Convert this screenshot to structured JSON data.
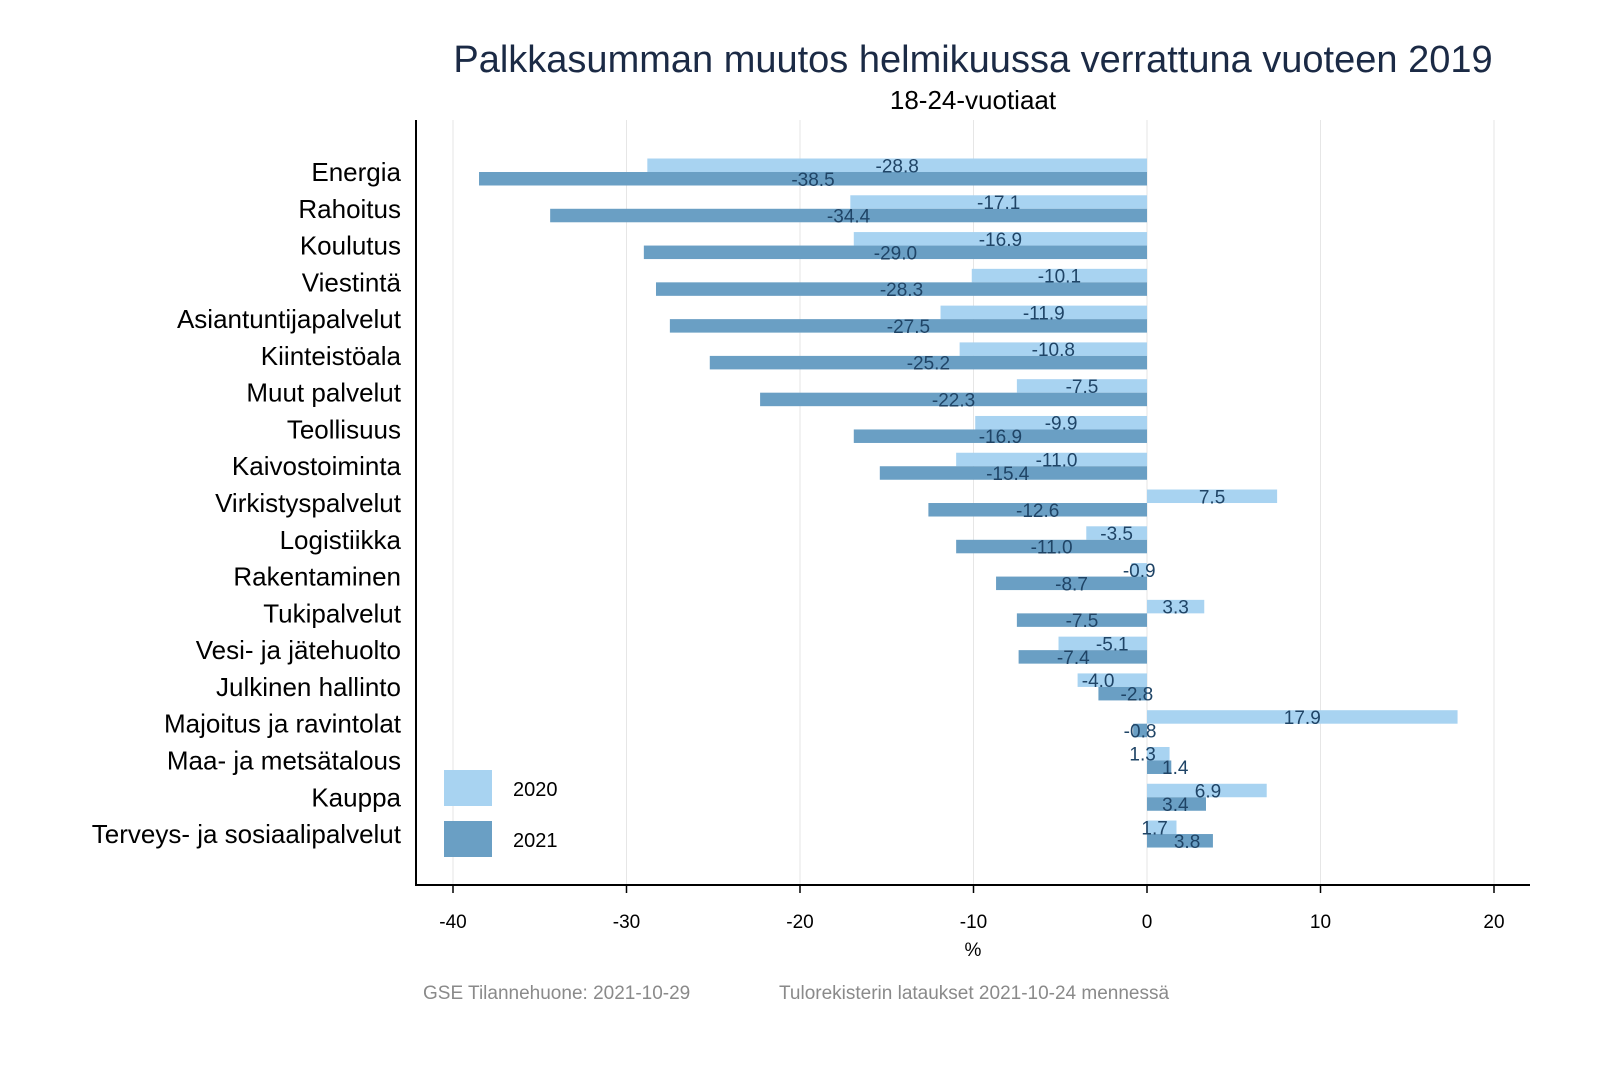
{
  "chart_data": {
    "type": "bar",
    "orientation": "horizontal",
    "title": "Palkkasumman muutos helmikuussa verrattuna vuoteen 2019",
    "subtitle": "18-24-vuotiaat",
    "xlabel": "%",
    "ylabel": "",
    "xlim": [
      -42,
      22
    ],
    "xticks": [
      -40,
      -30,
      -20,
      -10,
      0,
      10,
      20
    ],
    "grid": "vertical",
    "legend_position": "bottom-left",
    "categories": [
      "Energia",
      "Rahoitus",
      "Koulutus",
      "Viestintä",
      "Asiantuntijapalvelut",
      "Kiinteistöala",
      "Muut palvelut",
      "Teollisuus",
      "Kaivostoiminta",
      "Virkistyspalvelut",
      "Logistiikka",
      "Rakentaminen",
      "Tukipalvelut",
      "Vesi- ja jätehuolto",
      "Julkinen hallinto",
      "Majoitus ja ravintolat",
      "Maa- ja metsätalous",
      "Kauppa",
      "Terveys- ja sosiaalipalvelut"
    ],
    "series": [
      {
        "name": "2020",
        "color": "#a8d3f1",
        "values": [
          -28.8,
          -17.1,
          -16.9,
          -10.1,
          -11.9,
          -10.8,
          -7.5,
          -9.9,
          -11.0,
          7.5,
          -3.5,
          -0.9,
          3.3,
          -5.1,
          -4.0,
          17.9,
          1.3,
          6.9,
          1.7
        ]
      },
      {
        "name": "2021",
        "color": "#6a9fc4",
        "values": [
          -38.5,
          -34.4,
          -29.0,
          -28.3,
          -27.5,
          -25.2,
          -22.3,
          -16.9,
          -15.4,
          -12.6,
          -11.0,
          -8.7,
          -7.5,
          -7.4,
          -2.8,
          -0.8,
          1.4,
          3.4,
          3.8
        ]
      }
    ]
  },
  "footer": {
    "source": "GSE Tilannehuone: 2021-10-29",
    "note": "Tulorekisterin lataukset 2021-10-24 mennessä"
  }
}
